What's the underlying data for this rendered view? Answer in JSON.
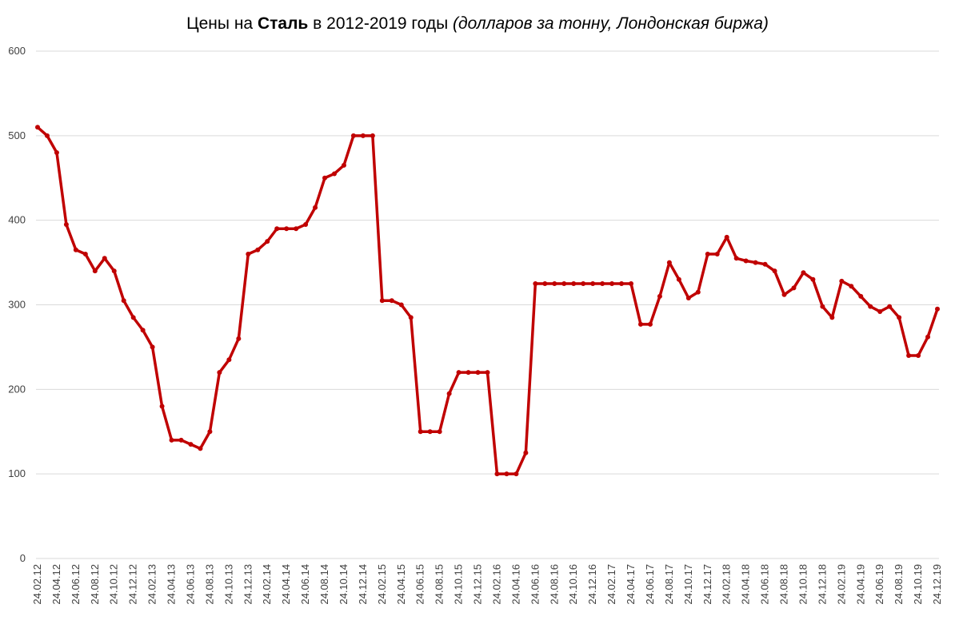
{
  "chart_data": {
    "type": "line",
    "title": [
      "Цены на ",
      "Сталь",
      " в 2012-2019 годы ",
      "(долларов за тонну, Лондонская биржа)"
    ],
    "categories": [
      "24.02.12",
      null,
      "24.04.12",
      null,
      "24.06.12",
      null,
      "24.08.12",
      null,
      "24.10.12",
      null,
      "24.12.12",
      null,
      "24.02.13",
      null,
      "24.04.13",
      null,
      "24.06.13",
      null,
      "24.08.13",
      null,
      "24.10.13",
      null,
      "24.12.13",
      null,
      "24.02.14",
      null,
      "24.04.14",
      null,
      "24.06.14",
      null,
      "24.08.14",
      null,
      "24.10.14",
      null,
      "24.12.14",
      null,
      "24.02.15",
      null,
      "24.04.15",
      null,
      "24.06.15",
      null,
      "24.08.15",
      null,
      "24.10.15",
      null,
      "24.12.15",
      null,
      "24.02.16",
      null,
      "24.04.16",
      null,
      "24.06.16",
      null,
      "24.08.16",
      null,
      "24.10.16",
      null,
      "24.12.16",
      null,
      "24.02.17",
      null,
      "24.04.17",
      null,
      "24.06.17",
      null,
      "24.08.17",
      null,
      "24.10.17",
      null,
      "24.12.17",
      null,
      "24.02.18",
      null,
      "24.04.18",
      null,
      "24.06.18",
      null,
      "24.08.18",
      null,
      "24.10.18",
      null,
      "24.12.18",
      null,
      "24.02.19",
      null,
      "24.04.19",
      null,
      "24.06.19",
      null,
      "24.08.19",
      null,
      "24.10.19",
      null,
      "24.12.19"
    ],
    "series": [
      {
        "color": "#c00000",
        "values": [
          510,
          500,
          480,
          395,
          365,
          360,
          340,
          355,
          340,
          305,
          285,
          270,
          250,
          180,
          140,
          140,
          135,
          130,
          150,
          220,
          235,
          260,
          360,
          365,
          375,
          390,
          390,
          390,
          395,
          415,
          450,
          455,
          465,
          500,
          500,
          500,
          305,
          305,
          300,
          285,
          150,
          150,
          150,
          195,
          220,
          220,
          220,
          220,
          100,
          100,
          100,
          125,
          325,
          325,
          325,
          325,
          325,
          325,
          325,
          325,
          325,
          325,
          325,
          277,
          277,
          310,
          350,
          330,
          308,
          315,
          360,
          360,
          380,
          355,
          352,
          350,
          348,
          340,
          312,
          320,
          338,
          330,
          298,
          285,
          328,
          322,
          310,
          298,
          292,
          298,
          285,
          240,
          240,
          262,
          295
        ]
      }
    ],
    "ylim": [
      0,
      600
    ],
    "yticks": [
      0,
      100,
      200,
      300,
      400,
      500,
      600
    ],
    "grid": true
  }
}
